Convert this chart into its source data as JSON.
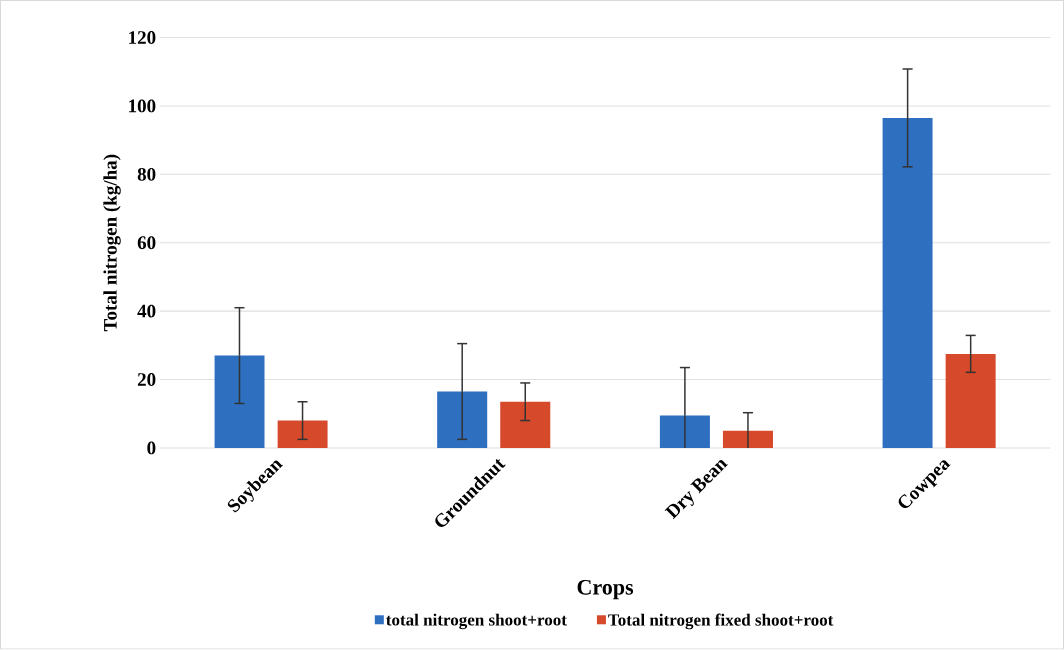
{
  "chart_data": {
    "type": "bar",
    "xlabel": "Crops",
    "ylabel": "Total nitrogen (kg/ha)",
    "categories": [
      "Soybean",
      "Groundnut",
      "Dry Bean",
      "Cowpea"
    ],
    "series": [
      {
        "name": "total nitrogen shoot+root",
        "color": "#2e6fc0",
        "values": [
          27,
          16.5,
          9.5,
          96.5
        ],
        "errors": [
          14,
          14,
          14,
          14.3
        ]
      },
      {
        "name": "Total nitrogen fixed shoot+root",
        "color": "#d6492a",
        "values": [
          8,
          13.5,
          5,
          27.5
        ],
        "errors": [
          5.5,
          5.5,
          5.3,
          5.4
        ]
      }
    ],
    "ylim": [
      0,
      120
    ],
    "yticks": [
      0,
      20,
      40,
      60,
      80,
      100,
      120
    ],
    "grid": "y",
    "legend": "bottom"
  }
}
